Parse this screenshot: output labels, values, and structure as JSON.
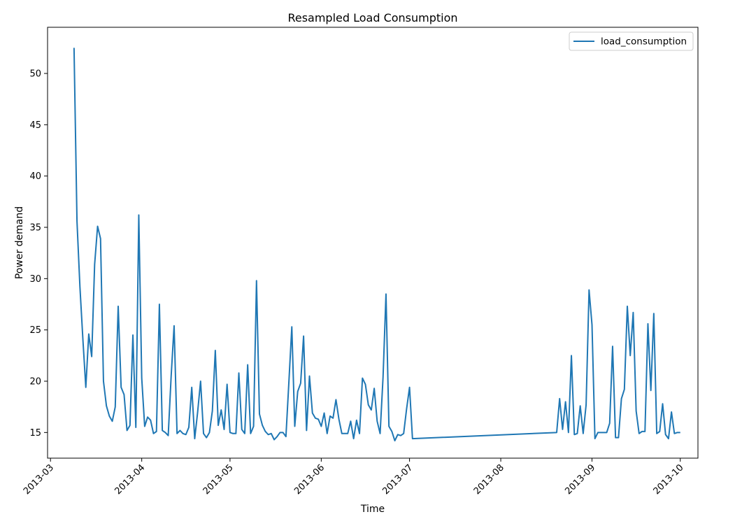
{
  "chart_data": {
    "type": "line",
    "title": "Resampled Load Consumption",
    "xlabel": "Time",
    "ylabel": "Power demand",
    "xlim": [
      "2013-02-28",
      "2013-10-07"
    ],
    "ylim": [
      12.5,
      54.5
    ],
    "x_ticks": [
      "2013-03",
      "2013-04",
      "2013-05",
      "2013-06",
      "2013-07",
      "2013-08",
      "2013-09",
      "2013-10"
    ],
    "y_ticks": [
      15,
      20,
      25,
      30,
      35,
      40,
      45,
      50
    ],
    "legend": {
      "position": "top-right",
      "entries": [
        "load_consumption"
      ]
    },
    "grid": false,
    "line_color": "#1f77b4",
    "series": [
      {
        "name": "load_consumption",
        "points": [
          [
            "2013-03-09",
            52.5
          ],
          [
            "2013-03-10",
            35.6
          ],
          [
            "2013-03-11",
            29.2
          ],
          [
            "2013-03-12",
            24.1
          ],
          [
            "2013-03-13",
            19.4
          ],
          [
            "2013-03-14",
            24.6
          ],
          [
            "2013-03-15",
            22.4
          ],
          [
            "2013-03-16",
            31.4
          ],
          [
            "2013-03-17",
            35.1
          ],
          [
            "2013-03-18",
            33.9
          ],
          [
            "2013-03-19",
            20.0
          ],
          [
            "2013-03-20",
            17.6
          ],
          [
            "2013-03-21",
            16.6
          ],
          [
            "2013-03-22",
            16.1
          ],
          [
            "2013-03-23",
            17.5
          ],
          [
            "2013-03-24",
            27.3
          ],
          [
            "2013-03-25",
            19.4
          ],
          [
            "2013-03-26",
            18.7
          ],
          [
            "2013-03-27",
            15.2
          ],
          [
            "2013-03-28",
            15.7
          ],
          [
            "2013-03-29",
            24.5
          ],
          [
            "2013-03-30",
            15.5
          ],
          [
            "2013-03-31",
            36.2
          ],
          [
            "2013-04-01",
            20.3
          ],
          [
            "2013-04-02",
            15.6
          ],
          [
            "2013-04-03",
            16.5
          ],
          [
            "2013-04-04",
            16.2
          ],
          [
            "2013-04-05",
            14.9
          ],
          [
            "2013-04-06",
            15.1
          ],
          [
            "2013-04-07",
            27.5
          ],
          [
            "2013-04-08",
            15.2
          ],
          [
            "2013-04-09",
            15.0
          ],
          [
            "2013-04-10",
            14.7
          ],
          [
            "2013-04-11",
            20.5
          ],
          [
            "2013-04-12",
            25.4
          ],
          [
            "2013-04-13",
            14.9
          ],
          [
            "2013-04-14",
            15.2
          ],
          [
            "2013-04-15",
            14.9
          ],
          [
            "2013-04-16",
            14.8
          ],
          [
            "2013-04-17",
            15.5
          ],
          [
            "2013-04-18",
            19.4
          ],
          [
            "2013-04-19",
            14.4
          ],
          [
            "2013-04-20",
            17.0
          ],
          [
            "2013-04-21",
            20.0
          ],
          [
            "2013-04-22",
            14.9
          ],
          [
            "2013-04-23",
            14.5
          ],
          [
            "2013-04-24",
            15.0
          ],
          [
            "2013-04-25",
            17.1
          ],
          [
            "2013-04-26",
            23.0
          ],
          [
            "2013-04-27",
            15.7
          ],
          [
            "2013-04-28",
            17.2
          ],
          [
            "2013-04-29",
            15.3
          ],
          [
            "2013-04-30",
            19.7
          ],
          [
            "2013-05-01",
            15.0
          ],
          [
            "2013-05-02",
            14.9
          ],
          [
            "2013-05-03",
            14.9
          ],
          [
            "2013-05-04",
            20.8
          ],
          [
            "2013-05-05",
            15.3
          ],
          [
            "2013-05-06",
            14.9
          ],
          [
            "2013-05-07",
            21.6
          ],
          [
            "2013-05-08",
            14.9
          ],
          [
            "2013-05-09",
            15.6
          ],
          [
            "2013-05-10",
            29.8
          ],
          [
            "2013-05-11",
            16.8
          ],
          [
            "2013-05-12",
            15.7
          ],
          [
            "2013-05-13",
            15.1
          ],
          [
            "2013-05-14",
            14.8
          ],
          [
            "2013-05-15",
            14.9
          ],
          [
            "2013-05-16",
            14.3
          ],
          [
            "2013-05-17",
            14.6
          ],
          [
            "2013-05-18",
            15.0
          ],
          [
            "2013-05-19",
            15.0
          ],
          [
            "2013-05-20",
            14.6
          ],
          [
            "2013-05-21",
            19.9
          ],
          [
            "2013-05-22",
            25.3
          ],
          [
            "2013-05-23",
            15.6
          ],
          [
            "2013-05-24",
            19.0
          ],
          [
            "2013-05-25",
            19.8
          ],
          [
            "2013-05-26",
            24.4
          ],
          [
            "2013-05-27",
            15.2
          ],
          [
            "2013-05-28",
            20.5
          ],
          [
            "2013-05-29",
            16.9
          ],
          [
            "2013-05-30",
            16.4
          ],
          [
            "2013-05-31",
            16.3
          ],
          [
            "2013-06-01",
            15.6
          ],
          [
            "2013-06-02",
            16.9
          ],
          [
            "2013-06-03",
            14.9
          ],
          [
            "2013-06-04",
            16.6
          ],
          [
            "2013-06-05",
            16.4
          ],
          [
            "2013-06-06",
            18.2
          ],
          [
            "2013-06-07",
            16.3
          ],
          [
            "2013-06-08",
            14.9
          ],
          [
            "2013-06-09",
            14.9
          ],
          [
            "2013-06-10",
            14.9
          ],
          [
            "2013-06-11",
            16.1
          ],
          [
            "2013-06-12",
            14.4
          ],
          [
            "2013-06-13",
            16.2
          ],
          [
            "2013-06-14",
            14.9
          ],
          [
            "2013-06-15",
            20.3
          ],
          [
            "2013-06-16",
            19.7
          ],
          [
            "2013-06-17",
            17.7
          ],
          [
            "2013-06-18",
            17.2
          ],
          [
            "2013-06-19",
            19.3
          ],
          [
            "2013-06-20",
            16.1
          ],
          [
            "2013-06-21",
            14.9
          ],
          [
            "2013-06-22",
            20.4
          ],
          [
            "2013-06-23",
            28.5
          ],
          [
            "2013-06-24",
            15.6
          ],
          [
            "2013-06-25",
            15.1
          ],
          [
            "2013-06-26",
            14.2
          ],
          [
            "2013-06-27",
            14.8
          ],
          [
            "2013-06-28",
            14.7
          ],
          [
            "2013-06-29",
            14.9
          ],
          [
            "2013-06-30",
            17.3
          ],
          [
            "2013-07-01",
            19.4
          ],
          [
            "2013-07-02",
            14.4
          ],
          [
            "2013-08-20",
            15.0
          ],
          [
            "2013-08-21",
            18.3
          ],
          [
            "2013-08-22",
            15.3
          ],
          [
            "2013-08-23",
            18.0
          ],
          [
            "2013-08-24",
            15.0
          ],
          [
            "2013-08-25",
            22.5
          ],
          [
            "2013-08-26",
            14.8
          ],
          [
            "2013-08-27",
            14.9
          ],
          [
            "2013-08-28",
            17.6
          ],
          [
            "2013-08-29",
            14.9
          ],
          [
            "2013-08-30",
            17.7
          ],
          [
            "2013-08-31",
            28.9
          ],
          [
            "2013-09-01",
            25.5
          ],
          [
            "2013-09-02",
            14.4
          ],
          [
            "2013-09-03",
            15.0
          ],
          [
            "2013-09-04",
            15.0
          ],
          [
            "2013-09-05",
            15.0
          ],
          [
            "2013-09-06",
            15.0
          ],
          [
            "2013-09-07",
            15.9
          ],
          [
            "2013-09-08",
            23.4
          ],
          [
            "2013-09-09",
            14.5
          ],
          [
            "2013-09-10",
            14.5
          ],
          [
            "2013-09-11",
            18.3
          ],
          [
            "2013-09-12",
            19.2
          ],
          [
            "2013-09-13",
            27.3
          ],
          [
            "2013-09-14",
            22.5
          ],
          [
            "2013-09-15",
            26.7
          ],
          [
            "2013-09-16",
            17.1
          ],
          [
            "2013-09-17",
            14.9
          ],
          [
            "2013-09-18",
            15.1
          ],
          [
            "2013-09-19",
            15.1
          ],
          [
            "2013-09-20",
            25.6
          ],
          [
            "2013-09-21",
            19.1
          ],
          [
            "2013-09-22",
            26.6
          ],
          [
            "2013-09-23",
            14.9
          ],
          [
            "2013-09-24",
            15.1
          ],
          [
            "2013-09-25",
            17.8
          ],
          [
            "2013-09-26",
            14.8
          ],
          [
            "2013-09-27",
            14.4
          ],
          [
            "2013-09-28",
            17.0
          ],
          [
            "2013-09-29",
            14.9
          ],
          [
            "2013-09-30",
            15.0
          ],
          [
            "2013-10-01",
            15.0
          ]
        ]
      }
    ]
  }
}
